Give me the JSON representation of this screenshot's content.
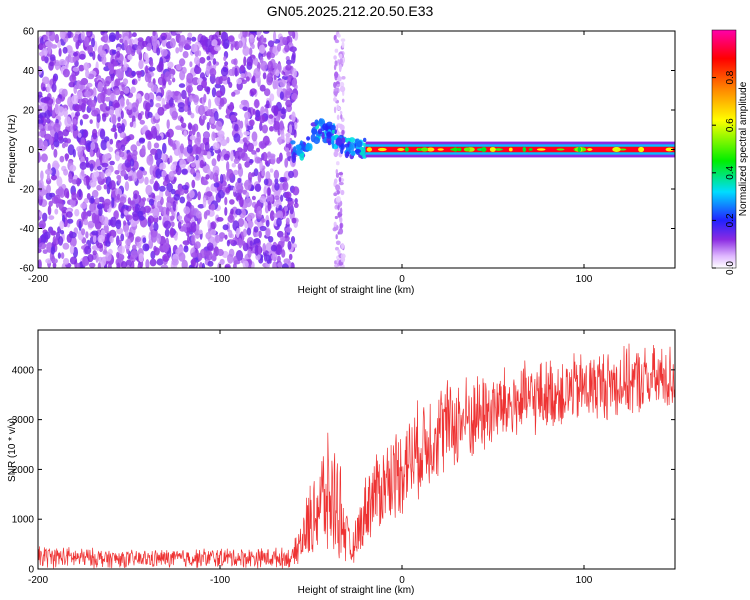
{
  "figure": {
    "title": "GN05.2025.212.20.50.E33"
  },
  "chart_data": [
    {
      "type": "heatmap",
      "xlabel": "Height of straight line (km)",
      "ylabel": "Frequency (Hz)",
      "xlim": [
        -200,
        150
      ],
      "ylim": [
        -60,
        60
      ],
      "xticks": [
        -200,
        -100,
        0,
        100
      ],
      "yticks": [
        -60,
        -40,
        -20,
        0,
        20,
        40,
        60
      ],
      "colorbar": {
        "label": "Normalized spectral amplitude",
        "range": [
          0.0,
          1.0
        ],
        "ticks": [
          0.0,
          0.2,
          0.4,
          0.6,
          0.8
        ],
        "colormap": "rainbow (violet-blue-cyan-green-yellow-orange-red-magenta)"
      },
      "regions": [
        {
          "x_range": [
            -200,
            -58
          ],
          "f_range": [
            -60,
            60
          ],
          "amplitude": [
            0.05,
            0.15
          ],
          "description": "scattered noise"
        },
        {
          "x_range": [
            -37,
            -32
          ],
          "f_range": [
            -60,
            60
          ],
          "amplitude": [
            0.03,
            0.1
          ],
          "description": "noise band"
        },
        {
          "x_range": [
            -60,
            -20
          ],
          "f_range": [
            -12,
            16
          ],
          "amplitude": [
            0.15,
            0.35
          ],
          "description": "onset blobs"
        },
        {
          "x_range": [
            -20,
            150
          ],
          "f_center": 0,
          "f_halfwidth": 2,
          "amplitude": [
            0.8,
            1.0
          ],
          "description": "narrow line near 0 Hz"
        }
      ]
    },
    {
      "type": "line",
      "xlabel": "Height of straight line (km)",
      "ylabel": "SNR (10 * v/v)",
      "xlim": [
        -200,
        150
      ],
      "ylim": [
        0,
        4800
      ],
      "xticks": [
        -200,
        -100,
        0,
        100
      ],
      "yticks": [
        0,
        1000,
        2000,
        3000,
        4000
      ],
      "series": [
        {
          "color": "#ee3333",
          "envelope": [
            {
              "x": -200,
              "low": 0,
              "high": 500
            },
            {
              "x": -150,
              "low": 0,
              "high": 400
            },
            {
              "x": -100,
              "low": 0,
              "high": 450
            },
            {
              "x": -60,
              "low": 0,
              "high": 450
            },
            {
              "x": -45,
              "low": 100,
              "high": 2600
            },
            {
              "x": -40,
              "low": 50,
              "high": 2800
            },
            {
              "x": -35,
              "low": 50,
              "high": 2600
            },
            {
              "x": -28,
              "low": 0,
              "high": 600
            },
            {
              "x": -18,
              "low": 500,
              "high": 2300
            },
            {
              "x": 0,
              "low": 1000,
              "high": 3100
            },
            {
              "x": 20,
              "low": 1700,
              "high": 3900
            },
            {
              "x": 50,
              "low": 2300,
              "high": 4100
            },
            {
              "x": 80,
              "low": 2700,
              "high": 4300
            },
            {
              "x": 110,
              "low": 2900,
              "high": 4500
            },
            {
              "x": 150,
              "low": 3100,
              "high": 4600
            }
          ]
        }
      ]
    }
  ]
}
